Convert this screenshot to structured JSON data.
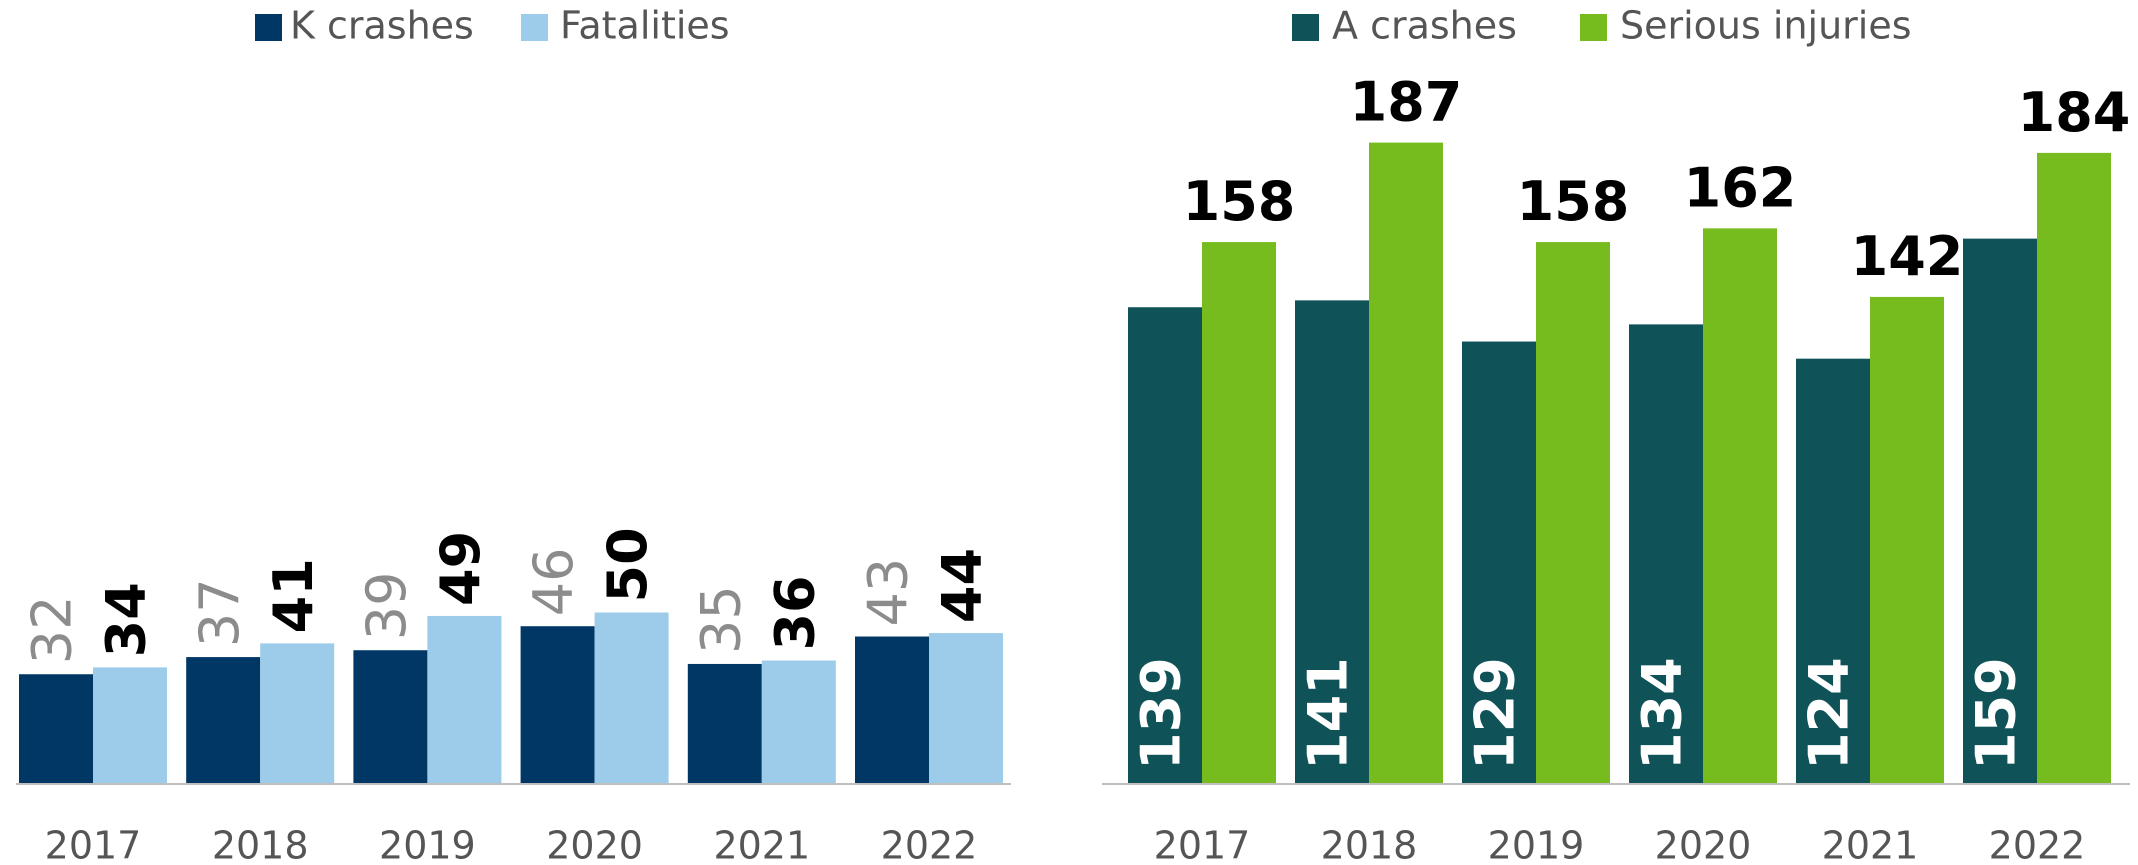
{
  "chart_data": [
    {
      "type": "bar",
      "categories": [
        "2017",
        "2018",
        "2019",
        "2020",
        "2021",
        "2022"
      ],
      "series": [
        {
          "name": "K crashes",
          "color": "#003764",
          "values": [
            32,
            37,
            39,
            46,
            35,
            43
          ]
        },
        {
          "name": "Fatalities",
          "color": "#9dcbea",
          "values": [
            34,
            41,
            49,
            50,
            36,
            44
          ]
        }
      ]
    },
    {
      "type": "bar",
      "categories": [
        "2017",
        "2018",
        "2019",
        "2020",
        "2021",
        "2022"
      ],
      "series": [
        {
          "name": "A crashes",
          "color": "#0f5257",
          "values": [
            139,
            141,
            129,
            134,
            124,
            159
          ]
        },
        {
          "name": "Serious injuries",
          "color": "#77bc1f",
          "values": [
            158,
            187,
            158,
            162,
            142,
            184
          ]
        }
      ]
    }
  ]
}
